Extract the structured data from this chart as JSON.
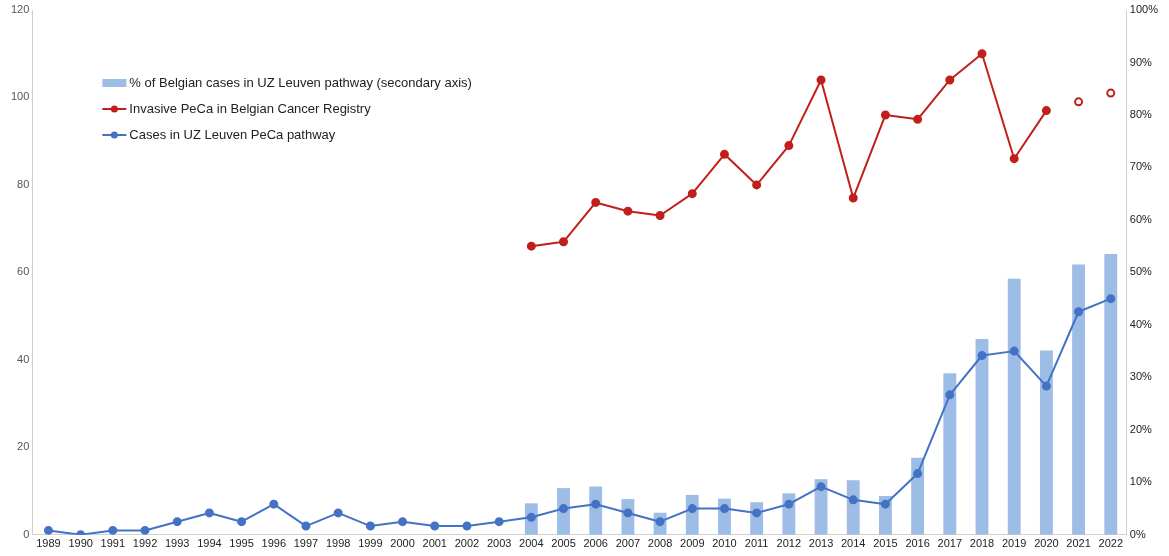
{
  "chart_data": {
    "type": "line",
    "categories": [
      "1989",
      "1990",
      "1991",
      "1992",
      "1993",
      "1994",
      "1995",
      "1996",
      "1997",
      "1998",
      "1999",
      "2000",
      "2001",
      "2002",
      "2003",
      "2004",
      "2005",
      "2006",
      "2007",
      "2008",
      "2009",
      "2010",
      "2011",
      "2012",
      "2013",
      "2014",
      "2015",
      "2016",
      "2017",
      "2018",
      "2019",
      "2020",
      "2021",
      "2022"
    ],
    "series": [
      {
        "name": "% of Belgian cases in UZ Leuven pathway (secondary axis)",
        "type": "bar",
        "axis": "y2",
        "color": "#9dbde6",
        "values": [
          null,
          null,
          null,
          null,
          null,
          null,
          null,
          null,
          null,
          null,
          null,
          null,
          null,
          null,
          null,
          6.0,
          8.9,
          9.2,
          6.8,
          4.2,
          7.6,
          6.9,
          6.2,
          7.9,
          10.6,
          10.4,
          7.4,
          14.7,
          30.8,
          37.3,
          48.8,
          35.1,
          51.5,
          53.5
        ]
      },
      {
        "name": "Invasive PeCa in Belgian Cancer Registry",
        "color": "#c0201a",
        "values": [
          null,
          null,
          null,
          null,
          null,
          null,
          null,
          null,
          null,
          null,
          null,
          null,
          null,
          null,
          null,
          66,
          67,
          76,
          74,
          73,
          78,
          87,
          80,
          89,
          104,
          77,
          96,
          95,
          104,
          110,
          86,
          97,
          null,
          null
        ]
      },
      {
        "name": "Cases in UZ Leuven PeCa pathway",
        "color": "#4472c4",
        "values": [
          1,
          0,
          1,
          1,
          3,
          5,
          3,
          7,
          2,
          5,
          2,
          3,
          2,
          2,
          3,
          4,
          6,
          7,
          5,
          3,
          6,
          6,
          5,
          7,
          11,
          8,
          7,
          14,
          32,
          41,
          42,
          34,
          51,
          54
        ]
      },
      {
        "type": "scatter",
        "color": "#c0201a",
        "values": [
          null,
          null,
          null,
          null,
          null,
          null,
          null,
          null,
          null,
          null,
          null,
          null,
          null,
          null,
          null,
          null,
          null,
          null,
          null,
          null,
          null,
          null,
          null,
          null,
          null,
          null,
          null,
          null,
          null,
          null,
          null,
          null,
          99,
          101
        ]
      }
    ],
    "ylim": [
      0,
      120
    ],
    "yticks": [
      0,
      20,
      40,
      60,
      80,
      100,
      120
    ],
    "y2lim": [
      0,
      100
    ],
    "y2ticks": [
      {
        "value": 0,
        "label": "0%"
      },
      {
        "value": 10,
        "label": "10%"
      },
      {
        "value": 20,
        "label": "20%"
      },
      {
        "value": 30,
        "label": "30%"
      },
      {
        "value": 40,
        "label": "40%"
      },
      {
        "value": 50,
        "label": "50%"
      },
      {
        "value": 60,
        "label": "60%"
      },
      {
        "value": 70,
        "label": "70%"
      },
      {
        "value": 80,
        "label": "80%"
      },
      {
        "value": 90,
        "label": "90%"
      },
      {
        "value": 100,
        "label": "100%"
      }
    ],
    "grid": false,
    "legend": "top left",
    "marker": "circle",
    "line_style": "solid"
  }
}
